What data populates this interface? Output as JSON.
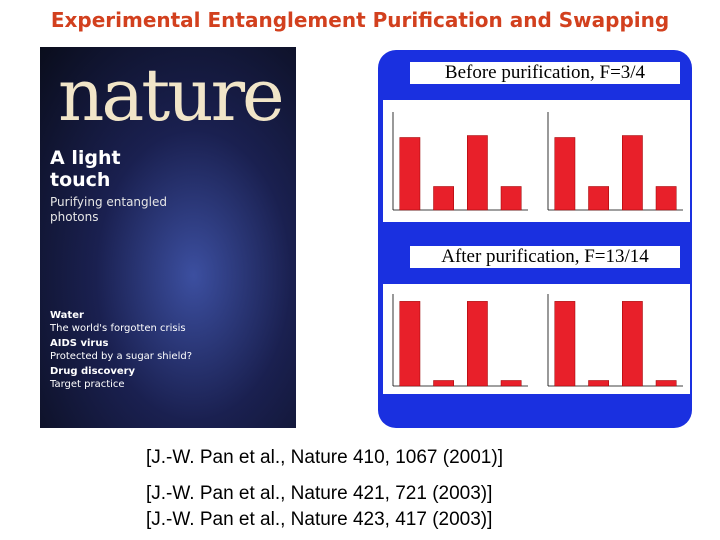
{
  "title": "Experimental Entanglement Purification and Swapping",
  "cover": {
    "masthead": "nature",
    "headline": "A light touch",
    "subhead": "Purifying entangled photons",
    "items": [
      {
        "topic": "Water",
        "text": "The world's forgotten crisis"
      },
      {
        "topic": "AIDS virus",
        "text": "Protected by a sugar shield?"
      },
      {
        "topic": "Drug discovery",
        "text": "Target practice"
      }
    ]
  },
  "panel": {
    "before_caption": "Before purification, F=3/4",
    "after_caption": "After purification, F=13/14",
    "charts": [
      {
        "ylim": [
          0,
          0.5
        ],
        "values": [
          0.37,
          0.12,
          0.38,
          0.12
        ]
      },
      {
        "ylim": [
          0,
          0.5
        ],
        "values": [
          0.37,
          0.12,
          0.38,
          0.12
        ]
      },
      {
        "ylim": [
          0,
          0.5
        ],
        "values": [
          0.46,
          0.03,
          0.46,
          0.03
        ]
      },
      {
        "ylim": [
          0,
          0.5
        ],
        "values": [
          0.46,
          0.03,
          0.46,
          0.03
        ]
      }
    ]
  },
  "citations": [
    "[J.-W. Pan et al., Nature 410, 1067 (2001)]",
    "[J.-W. Pan et al., Nature 421, 721 (2003)]",
    "[J.-W. Pan et al., Nature 423, 417 (2003)]"
  ]
}
